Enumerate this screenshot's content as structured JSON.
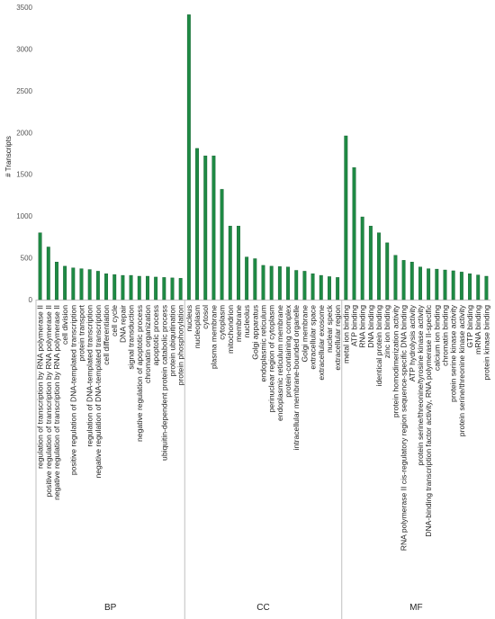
{
  "chart_data": {
    "type": "bar",
    "title": "",
    "xlabel": "",
    "ylabel": "# Transcripts",
    "ylim": [
      0,
      3500
    ],
    "yticks": [
      0,
      500,
      1000,
      1500,
      2000,
      2500,
      3000,
      3500
    ],
    "grid": false,
    "legend": "none",
    "colors": {
      "bar": "#1e8a44",
      "bar_dark": "#0f5a2a",
      "axis": "#bfbfbf"
    },
    "groups": [
      {
        "name": "BP",
        "categories": [
          "regulation of transcription by RNA polymerase II",
          "positive regulation of transcription by RNA polymerase II",
          "negative regulation of transcription by RNA polymerase II",
          "cell division",
          "positive regulation of DNA-templated transcription",
          "protein transport",
          "regulation of DNA-templated transcription",
          "negative regulation of DNA-templated transcription",
          "cell differentiation",
          "cell cycle",
          "DNA repair",
          "signal transduction",
          "negative regulation of apoptotic process",
          "chromatin organization",
          "apoptotic process",
          "ubiquitin-dependent protein catabolic process",
          "protein ubiquitination",
          "protein phosphorylation"
        ],
        "values": [
          800,
          630,
          450,
          400,
          380,
          370,
          360,
          340,
          310,
          300,
          290,
          290,
          280,
          280,
          270,
          265,
          260,
          255
        ]
      },
      {
        "name": "CC",
        "categories": [
          "nucleus",
          "nucleoplasm",
          "cytosol",
          "plasma membrane",
          "cytoplasm",
          "mitochondrion",
          "membrane",
          "nucleolus",
          "Golgi apparatus",
          "endoplasmic reticulum",
          "perinuclear region of cytoplasm",
          "endoplasmic reticulum membrane",
          "protein-containing complex",
          "intracellular membrane-bounded organelle",
          "Golgi membrane",
          "extracellular space",
          "extracellular exosome",
          "nuclear speck",
          "extracellular region"
        ],
        "values": [
          3410,
          1810,
          1720,
          1720,
          1320,
          880,
          880,
          510,
          490,
          410,
          400,
          395,
          390,
          350,
          340,
          310,
          290,
          275,
          265
        ]
      },
      {
        "name": "MF",
        "categories": [
          "metal ion binding",
          "ATP binding",
          "RNA binding",
          "DNA binding",
          "identical protein binding",
          "zinc ion binding",
          "protein homodimerization activity",
          "RNA polymerase II cis-regulatory region sequence-specific DNA binding",
          "ATP hydrolysis activity",
          "protein serine/threonine/tyrosine kinase activity",
          "DNA-binding transcription factor activity, RNA polymerase II-specific",
          "calcium ion binding",
          "chromatin binding",
          "protein serine kinase activity",
          "protein serine/threonine kinase activity",
          "GTP binding",
          "mRNA binding",
          "protein kinase binding"
        ],
        "values": [
          1960,
          1580,
          990,
          880,
          800,
          680,
          530,
          470,
          450,
          390,
          370,
          365,
          355,
          345,
          330,
          310,
          295,
          280
        ]
      }
    ]
  }
}
